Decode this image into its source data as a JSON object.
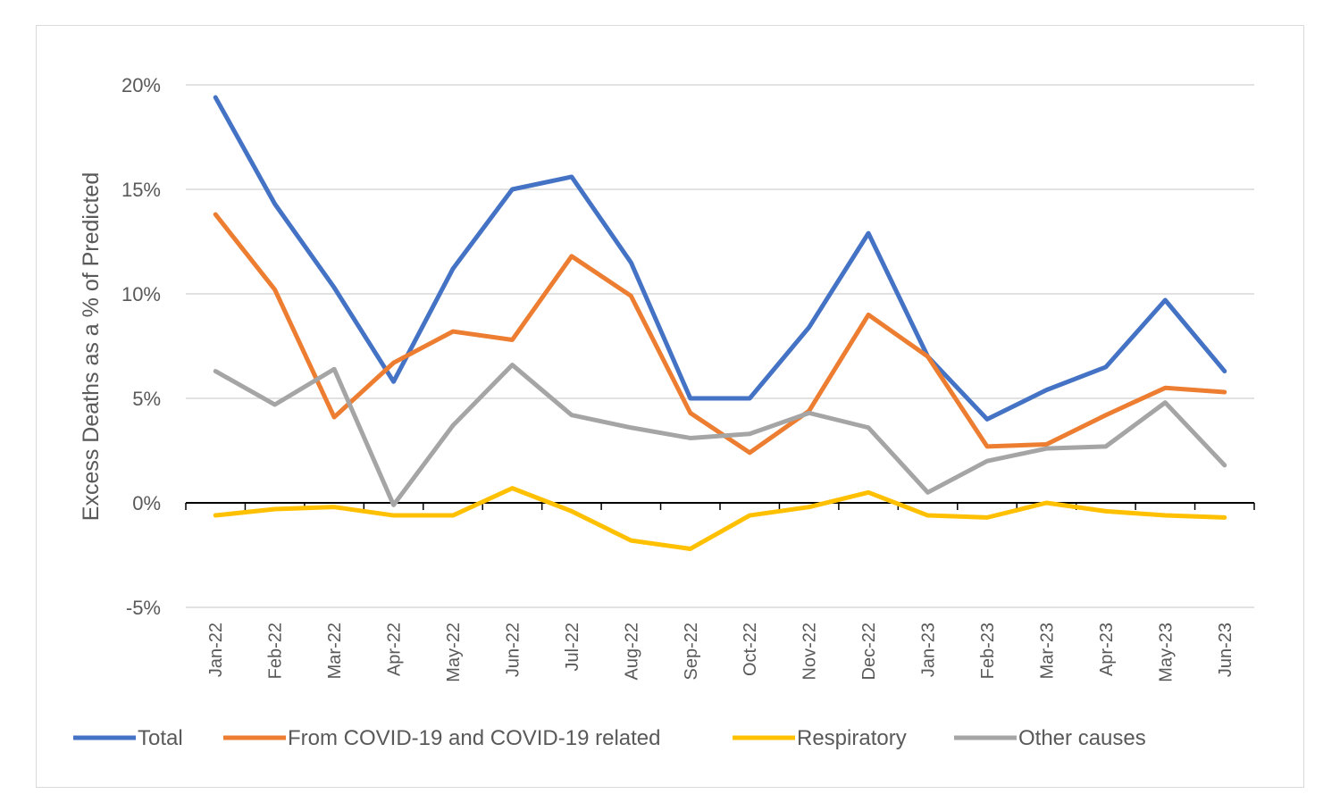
{
  "chart_data": {
    "type": "line",
    "title": "",
    "xlabel": "",
    "ylabel": "Excess Deaths as a % of Predicted",
    "ylim": [
      -5,
      20
    ],
    "yticks": [
      -5,
      0,
      5,
      10,
      15,
      20
    ],
    "ytick_labels": [
      "-5%",
      "0%",
      "5%",
      "10%",
      "15%",
      "20%"
    ],
    "grid": "horizontal",
    "legend_position": "bottom",
    "categories": [
      "Jan-22",
      "Feb-22",
      "Mar-22",
      "Apr-22",
      "May-22",
      "Jun-22",
      "Jul-22",
      "Aug-22",
      "Sep-22",
      "Oct-22",
      "Nov-22",
      "Dec-22",
      "Jan-23",
      "Feb-23",
      "Mar-23",
      "Apr-23",
      "May-23",
      "Jun-23"
    ],
    "series": [
      {
        "name": "Total",
        "color": "#4472C4",
        "values": [
          19.4,
          14.3,
          10.3,
          5.8,
          11.2,
          15.0,
          15.6,
          11.5,
          5.0,
          5.0,
          8.4,
          12.9,
          7.0,
          4.0,
          5.4,
          6.5,
          9.7,
          6.3
        ]
      },
      {
        "name": "From COVID-19 and COVID-19 related",
        "color": "#ED7D31",
        "values": [
          13.8,
          10.2,
          4.1,
          6.7,
          8.2,
          7.8,
          11.8,
          9.9,
          4.3,
          2.4,
          4.4,
          9.0,
          7.0,
          2.7,
          2.8,
          4.2,
          5.5,
          5.3
        ]
      },
      {
        "name": "Respiratory",
        "color": "#FFC000",
        "values": [
          -0.6,
          -0.3,
          -0.2,
          -0.6,
          -0.6,
          0.7,
          -0.4,
          -1.8,
          -2.2,
          -0.6,
          -0.2,
          0.5,
          -0.6,
          -0.7,
          0.0,
          -0.4,
          -0.6,
          -0.7
        ]
      },
      {
        "name": "Other causes",
        "color": "#A5A5A5",
        "values": [
          6.3,
          4.7,
          6.4,
          -0.1,
          3.7,
          6.6,
          4.2,
          3.6,
          3.1,
          3.3,
          4.3,
          3.6,
          0.5,
          2.0,
          2.6,
          2.7,
          4.8,
          1.8
        ]
      }
    ]
  }
}
